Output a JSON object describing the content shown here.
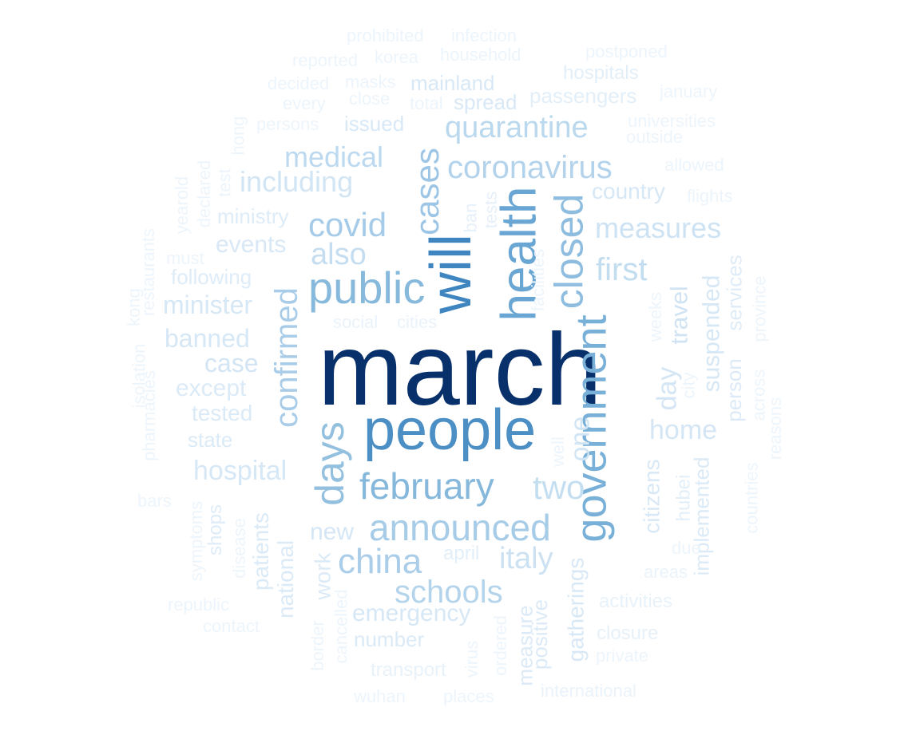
{
  "words": [
    {
      "text": "march",
      "weight": 1.0
    },
    {
      "text": "people",
      "weight": 0.78
    },
    {
      "text": "will",
      "weight": 0.72
    },
    {
      "text": "health",
      "weight": 0.66
    },
    {
      "text": "government",
      "weight": 0.62
    },
    {
      "text": "public",
      "weight": 0.6
    },
    {
      "text": "closed",
      "weight": 0.58
    },
    {
      "text": "february",
      "weight": 0.55
    },
    {
      "text": "announced",
      "weight": 0.5
    },
    {
      "text": "days",
      "weight": 0.5
    },
    {
      "text": "cases",
      "weight": 0.48
    },
    {
      "text": "confirmed",
      "weight": 0.44
    },
    {
      "text": "covid",
      "weight": 0.42
    },
    {
      "text": "china",
      "weight": 0.4
    },
    {
      "text": "coronavirus",
      "weight": 0.38
    },
    {
      "text": "quarantine",
      "weight": 0.36
    },
    {
      "text": "schools",
      "weight": 0.36
    },
    {
      "text": "medical",
      "weight": 0.34
    },
    {
      "text": "first",
      "weight": 0.34
    },
    {
      "text": "two",
      "weight": 0.33
    },
    {
      "text": "also",
      "weight": 0.32
    },
    {
      "text": "measures",
      "weight": 0.3
    },
    {
      "text": "italy",
      "weight": 0.3
    },
    {
      "text": "including",
      "weight": 0.28
    },
    {
      "text": "travel",
      "weight": 0.28
    },
    {
      "text": "one",
      "weight": 0.27
    },
    {
      "text": "day",
      "weight": 0.27
    },
    {
      "text": "home",
      "weight": 0.27
    },
    {
      "text": "suspended",
      "weight": 0.26
    },
    {
      "text": "hospital",
      "weight": 0.25
    },
    {
      "text": "emergency",
      "weight": 0.24
    },
    {
      "text": "minister",
      "weight": 0.24
    },
    {
      "text": "banned",
      "weight": 0.24
    },
    {
      "text": "case",
      "weight": 0.24
    },
    {
      "text": "events",
      "weight": 0.23
    },
    {
      "text": "new",
      "weight": 0.23
    },
    {
      "text": "country",
      "weight": 0.23
    },
    {
      "text": "citizens",
      "weight": 0.22
    },
    {
      "text": "gatherings",
      "weight": 0.22
    },
    {
      "text": "issued",
      "weight": 0.2
    },
    {
      "text": "mainland",
      "weight": 0.2
    },
    {
      "text": "spread",
      "weight": 0.2
    },
    {
      "text": "work",
      "weight": 0.2
    },
    {
      "text": "national",
      "weight": 0.2
    },
    {
      "text": "patients",
      "weight": 0.2
    },
    {
      "text": "except",
      "weight": 0.2
    },
    {
      "text": "tested",
      "weight": 0.19
    },
    {
      "text": "state",
      "weight": 0.18
    },
    {
      "text": "number",
      "weight": 0.18
    },
    {
      "text": "implemented",
      "weight": 0.18
    },
    {
      "text": "person",
      "weight": 0.17
    },
    {
      "text": "services",
      "weight": 0.16
    },
    {
      "text": "positive",
      "weight": 0.17
    },
    {
      "text": "measure",
      "weight": 0.17
    },
    {
      "text": "ministry",
      "weight": 0.16
    },
    {
      "text": "following",
      "weight": 0.16
    },
    {
      "text": "passengers",
      "weight": 0.16
    },
    {
      "text": "hospitals",
      "weight": 0.15
    },
    {
      "text": "shops",
      "weight": 0.15
    },
    {
      "text": "hubei",
      "weight": 0.15
    },
    {
      "text": "april",
      "weight": 0.15
    },
    {
      "text": "transport",
      "weight": 0.14
    },
    {
      "text": "closure",
      "weight": 0.14
    },
    {
      "text": "activities",
      "weight": 0.14
    },
    {
      "text": "ban",
      "weight": 0.14
    },
    {
      "text": "tests",
      "weight": 0.14
    },
    {
      "text": "social",
      "weight": 0.13
    },
    {
      "text": "cities",
      "weight": 0.13
    },
    {
      "text": "areas",
      "weight": 0.13
    },
    {
      "text": "international",
      "weight": 0.13
    },
    {
      "text": "household",
      "weight": 0.12
    },
    {
      "text": "korea",
      "weight": 0.12
    },
    {
      "text": "reported",
      "weight": 0.12
    },
    {
      "text": "masks",
      "weight": 0.12
    },
    {
      "text": "decided",
      "weight": 0.12
    },
    {
      "text": "close",
      "weight": 0.12
    },
    {
      "text": "total",
      "weight": 0.12
    },
    {
      "text": "every",
      "weight": 0.12
    },
    {
      "text": "persons",
      "weight": 0.12
    },
    {
      "text": "universities",
      "weight": 0.12
    },
    {
      "text": "outside",
      "weight": 0.12
    },
    {
      "text": "allowed",
      "weight": 0.12
    },
    {
      "text": "flights",
      "weight": 0.12
    },
    {
      "text": "postponed",
      "weight": 0.12
    },
    {
      "text": "january",
      "weight": 0.12
    },
    {
      "text": "prohibited",
      "weight": 0.12
    },
    {
      "text": "infection",
      "weight": 0.12
    },
    {
      "text": "hong",
      "weight": 0.11
    },
    {
      "text": "test",
      "weight": 0.11
    },
    {
      "text": "declared",
      "weight": 0.11
    },
    {
      "text": "yearold",
      "weight": 0.11
    },
    {
      "text": "must",
      "weight": 0.11
    },
    {
      "text": "restaurants",
      "weight": 0.11
    },
    {
      "text": "kong",
      "weight": 0.11
    },
    {
      "text": "isolation",
      "weight": 0.11
    },
    {
      "text": "pharmacies",
      "weight": 0.11
    },
    {
      "text": "bars",
      "weight": 0.11
    },
    {
      "text": "symptoms",
      "weight": 0.11
    },
    {
      "text": "disease",
      "weight": 0.11
    },
    {
      "text": "republic",
      "weight": 0.11
    },
    {
      "text": "contact",
      "weight": 0.11
    },
    {
      "text": "border",
      "weight": 0.11
    },
    {
      "text": "cancelled",
      "weight": 0.11
    },
    {
      "text": "virus",
      "weight": 0.11
    },
    {
      "text": "ordered",
      "weight": 0.11
    },
    {
      "text": "wuhan",
      "weight": 0.11
    },
    {
      "text": "places",
      "weight": 0.11
    },
    {
      "text": "private",
      "weight": 0.11
    },
    {
      "text": "due",
      "weight": 0.11
    },
    {
      "text": "countries",
      "weight": 0.11
    },
    {
      "text": "reasons",
      "weight": 0.11
    },
    {
      "text": "across",
      "weight": 0.11
    },
    {
      "text": "province",
      "weight": 0.11
    },
    {
      "text": "weeks",
      "weight": 0.11
    },
    {
      "text": "city",
      "weight": 0.11
    },
    {
      "text": "facilities",
      "weight": 0.11
    },
    {
      "text": "well",
      "weight": 0.11
    }
  ]
}
